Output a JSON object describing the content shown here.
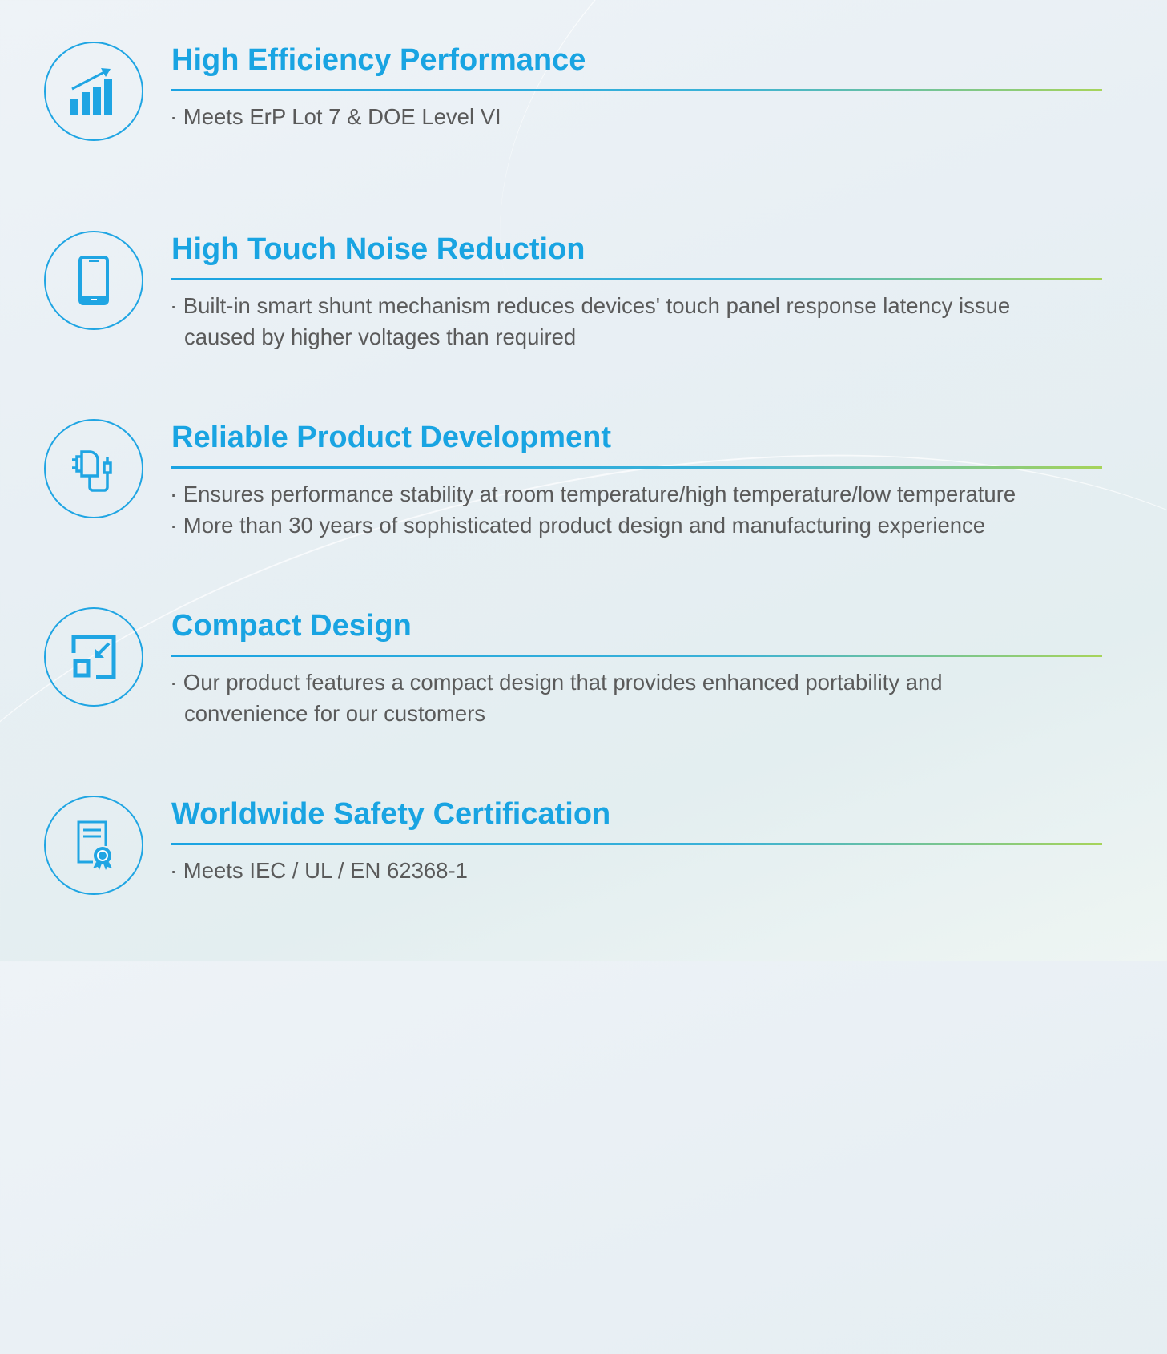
{
  "colors": {
    "accent": "#19a4e2",
    "rule_end": "#a7d45a",
    "text": "#5a5a5a"
  },
  "features": [
    {
      "icon": "bar-chart-growth-icon",
      "title": "High Efficiency Performance",
      "lines": [
        "· Meets ErP Lot 7 & DOE Level VI"
      ]
    },
    {
      "icon": "smartphone-icon",
      "title": "High Touch Noise Reduction",
      "lines": [
        "· Built-in smart shunt mechanism reduces devices' touch panel response latency issue",
        "caused by higher voltages than required"
      ]
    },
    {
      "icon": "charger-plug-icon",
      "title": "Reliable Product Development",
      "lines": [
        "· Ensures performance stability at room temperature/high temperature/low temperature",
        "· More than 30 years of sophisticated product  design and manufacturing experience"
      ]
    },
    {
      "icon": "compact-resize-icon",
      "title": "Compact Design",
      "lines": [
        "· Our product features a compact design that provides enhanced portability and",
        "convenience for our customers"
      ]
    },
    {
      "icon": "certificate-icon",
      "title": "Worldwide Safety Certification",
      "lines": [
        "· Meets IEC / UL / EN 62368-1"
      ]
    }
  ]
}
